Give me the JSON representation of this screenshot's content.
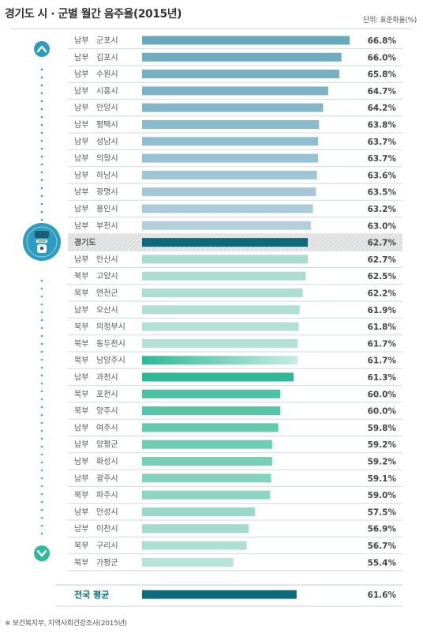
{
  "title": "경기도 시 · 군별 월간 음주율(2015년)",
  "unit_label": "단위: 표준화율(%)",
  "source": "※ 보건복지부, 지역사회건강조사(2015년)",
  "chart_data": {
    "type": "bar",
    "orientation": "horizontal",
    "title": "경기도 시 · 군별 월간 음주율(2015년)",
    "unit": "단위: 표준화율(%)",
    "rows": [
      {
        "region": "남부",
        "name": "군포시",
        "value": 66.8,
        "label": "66.8%"
      },
      {
        "region": "남부",
        "name": "김포시",
        "value": 66.0,
        "label": "66.0%"
      },
      {
        "region": "남부",
        "name": "수원시",
        "value": 65.8,
        "label": "65.8%"
      },
      {
        "region": "남부",
        "name": "시흥시",
        "value": 64.7,
        "label": "64.7%"
      },
      {
        "region": "남부",
        "name": "안양시",
        "value": 64.2,
        "label": "64.2%"
      },
      {
        "region": "남부",
        "name": "평택시",
        "value": 63.8,
        "label": "63.8%"
      },
      {
        "region": "남부",
        "name": "성남시",
        "value": 63.7,
        "label": "63.7%"
      },
      {
        "region": "남부",
        "name": "의왕시",
        "value": 63.7,
        "label": "63.7%"
      },
      {
        "region": "남부",
        "name": "하남시",
        "value": 63.6,
        "label": "63.6%"
      },
      {
        "region": "남부",
        "name": "광명시",
        "value": 63.5,
        "label": "63.5%"
      },
      {
        "region": "남부",
        "name": "용인시",
        "value": 63.2,
        "label": "63.2%"
      },
      {
        "region": "남부",
        "name": "부천시",
        "value": 63.0,
        "label": "63.0%"
      },
      {
        "region": "",
        "name": "경기도",
        "value": 62.7,
        "label": "62.7%",
        "highlight": true
      },
      {
        "region": "남부",
        "name": "안산시",
        "value": 62.7,
        "label": "62.7%"
      },
      {
        "region": "북부",
        "name": "고양시",
        "value": 62.5,
        "label": "62.5%"
      },
      {
        "region": "북부",
        "name": "연천군",
        "value": 62.2,
        "label": "62.2%"
      },
      {
        "region": "남부",
        "name": "오산시",
        "value": 61.9,
        "label": "61.9%"
      },
      {
        "region": "북부",
        "name": "의정부시",
        "value": 61.8,
        "label": "61.8%"
      },
      {
        "region": "북부",
        "name": "동두천시",
        "value": 61.7,
        "label": "61.7%"
      },
      {
        "region": "북부",
        "name": "남양주시",
        "value": 61.7,
        "label": "61.7%"
      },
      {
        "region": "남부",
        "name": "과천시",
        "value": 61.3,
        "label": "61.3%"
      },
      {
        "region": "북부",
        "name": "포천시",
        "value": 60.0,
        "label": "60.0%"
      },
      {
        "region": "북부",
        "name": "양주시",
        "value": 60.0,
        "label": "60.0%"
      },
      {
        "region": "남부",
        "name": "여주시",
        "value": 59.8,
        "label": "59.8%"
      },
      {
        "region": "남부",
        "name": "양평군",
        "value": 59.2,
        "label": "59.2%"
      },
      {
        "region": "남부",
        "name": "화성시",
        "value": 59.2,
        "label": "59.2%"
      },
      {
        "region": "남부",
        "name": "광주시",
        "value": 59.1,
        "label": "59.1%"
      },
      {
        "region": "북부",
        "name": "파주시",
        "value": 59.0,
        "label": "59.0%"
      },
      {
        "region": "남부",
        "name": "안성시",
        "value": 57.5,
        "label": "57.5%"
      },
      {
        "region": "남부",
        "name": "이천시",
        "value": 56.9,
        "label": "56.9%"
      },
      {
        "region": "북부",
        "name": "구리시",
        "value": 56.7,
        "label": "56.7%"
      },
      {
        "region": "북부",
        "name": "가평군",
        "value": 55.4,
        "label": "55.4%"
      }
    ],
    "national": {
      "name": "전국 평균",
      "value": 61.6,
      "label": "61.6%"
    },
    "colors": {
      "top_value": "#2e9bc0",
      "bottom_value": "#2fb99a",
      "gyeonggi_bar": "#0e6a78",
      "national_bar": "#0e6a78",
      "upper_bar_dark": "#6aa8bd",
      "upper_bar_light": "#b3cfdc",
      "lower_bar_bright": "#2fb996",
      "lower_bar_light": "#b8e2d6"
    },
    "icons": [
      "up-arrow-icon",
      "down-arrow-icon",
      "drinker-icon"
    ]
  }
}
